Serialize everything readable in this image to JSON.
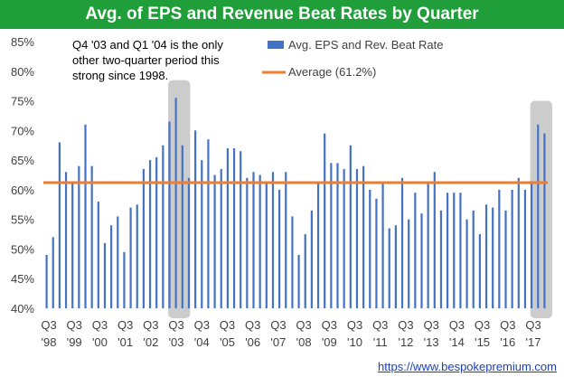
{
  "chart_data": {
    "type": "bar",
    "title": "Avg. of EPS and Revenue Beat Rates by Quarter",
    "y_ticks": [
      "85%",
      "80%",
      "75%",
      "70%",
      "65%",
      "60%",
      "55%",
      "50%",
      "45%",
      "40%"
    ],
    "ylim": [
      40,
      85
    ],
    "x_labels": [
      {
        "q": "Q3",
        "yr": "'98"
      },
      {
        "q": "Q3",
        "yr": "'99"
      },
      {
        "q": "Q3",
        "yr": "'00"
      },
      {
        "q": "Q3",
        "yr": "'01"
      },
      {
        "q": "Q3",
        "yr": "'02"
      },
      {
        "q": "Q3",
        "yr": "'03"
      },
      {
        "q": "Q3",
        "yr": "'04"
      },
      {
        "q": "Q3",
        "yr": "'05"
      },
      {
        "q": "Q3",
        "yr": "'06"
      },
      {
        "q": "Q3",
        "yr": "'07"
      },
      {
        "q": "Q3",
        "yr": "'08"
      },
      {
        "q": "Q3",
        "yr": "'09"
      },
      {
        "q": "Q3",
        "yr": "'10"
      },
      {
        "q": "Q3",
        "yr": "'11"
      },
      {
        "q": "Q3",
        "yr": "'12"
      },
      {
        "q": "Q3",
        "yr": "'13"
      },
      {
        "q": "Q3",
        "yr": "'14"
      },
      {
        "q": "Q3",
        "yr": "'15"
      },
      {
        "q": "Q3",
        "yr": "'16"
      },
      {
        "q": "Q3",
        "yr": "'17"
      }
    ],
    "values": [
      49.0,
      52.0,
      68.0,
      63.0,
      61.0,
      64.0,
      71.0,
      64.0,
      58.0,
      51.0,
      54.0,
      55.5,
      49.5,
      57.0,
      57.5,
      63.5,
      65.0,
      65.5,
      67.5,
      71.5,
      75.5,
      67.5,
      62.0,
      70.0,
      65.0,
      68.5,
      62.5,
      63.5,
      67.0,
      67.0,
      66.5,
      62.0,
      63.0,
      62.5,
      61.0,
      63.0,
      60.0,
      63.0,
      55.5,
      49.0,
      52.5,
      56.5,
      61.0,
      69.5,
      64.5,
      64.5,
      63.5,
      67.5,
      63.5,
      64.0,
      60.0,
      58.5,
      61.0,
      53.5,
      54.0,
      62.0,
      55.0,
      59.5,
      56.0,
      61.0,
      63.0,
      56.5,
      59.5,
      59.5,
      59.5,
      55.0,
      56.5,
      52.5,
      57.5,
      57.0,
      60.0,
      56.5,
      60.0,
      62.0,
      60.0,
      61.0,
      71.0,
      69.5
    ],
    "series": [
      {
        "name": "Avg. EPS and Rev. Beat Rate",
        "color": "#4472c4"
      },
      {
        "name": "Average (61.2%)",
        "color": "#ed7d31",
        "value": 61.2
      }
    ],
    "highlight_ranges": [
      [
        20,
        21
      ],
      [
        76,
        77
      ]
    ],
    "annotation": [
      "Q4 '03 and Q1 '04 is the only",
      "other two-quarter period this",
      "strong since 1998."
    ],
    "grid": false,
    "legend": "top-right"
  },
  "source": "https://www.bespokepremium.com"
}
